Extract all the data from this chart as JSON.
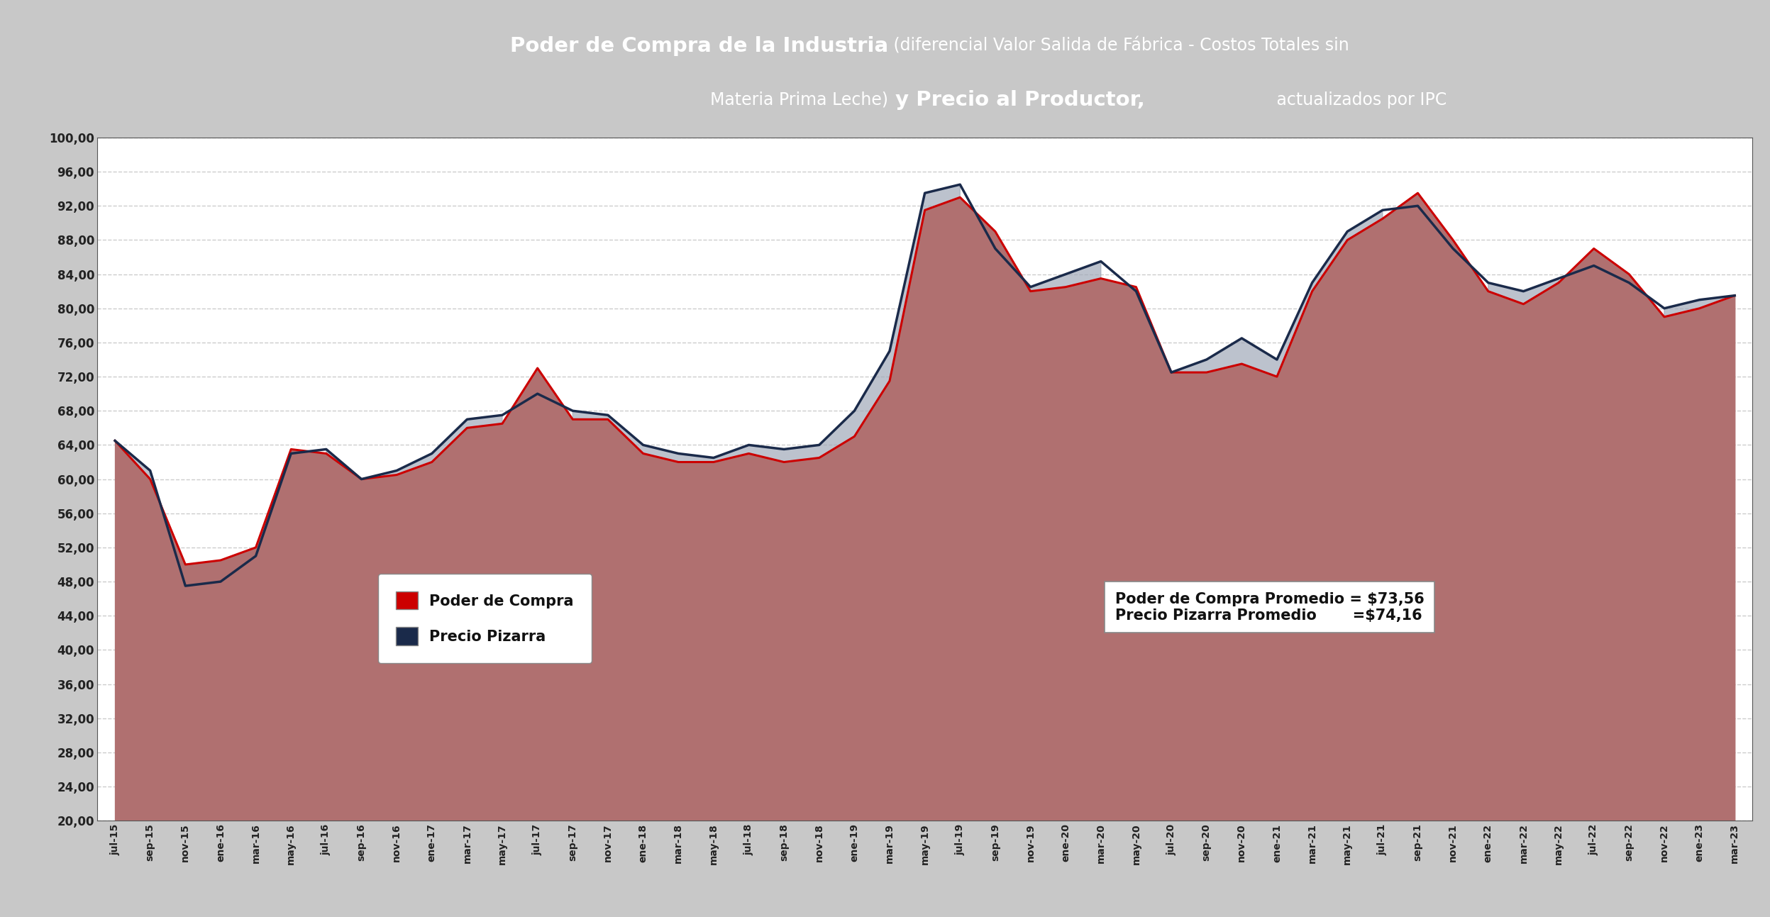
{
  "title_bg": "#0d1f3c",
  "title_fg": "#ffffff",
  "ylim_min": 20,
  "ylim_max": 100,
  "ytick_step": 4,
  "legend_poder": "Poder de Compra",
  "legend_pizarra": "Precio Pizarra",
  "line_poder_color": "#cc0000",
  "line_pizarra_color": "#1a2a4a",
  "fill_poder_color": "#b07070",
  "fill_pizarra_color": "#a0a8b8",
  "bg_color": "#c8c8c8",
  "plot_bg": "#ffffff",
  "grid_color": "#cccccc",
  "labels": [
    "jul-15",
    "sep-15",
    "nov-15",
    "ene-16",
    "mar-16",
    "may-16",
    "jul-16",
    "sep-16",
    "nov-16",
    "ene-17",
    "mar-17",
    "may-17",
    "jul-17",
    "sep-17",
    "nov-17",
    "ene-18",
    "mar-18",
    "may-18",
    "jul-18",
    "sep-18",
    "nov-18",
    "ene-19",
    "mar-19",
    "may-19",
    "jul-19",
    "sep-19",
    "nov-19",
    "ene-20",
    "mar-20",
    "may-20",
    "jul-20",
    "sep-20",
    "nov-20",
    "ene-21",
    "mar-21",
    "may-21",
    "jul-21",
    "sep-21",
    "nov-21",
    "ene-22",
    "mar-22",
    "may-22",
    "jul-22",
    "sep-22",
    "nov-22",
    "ene-23",
    "mar-23"
  ],
  "poder_values": [
    64.5,
    60.0,
    50.0,
    50.5,
    52.0,
    63.5,
    63.0,
    60.0,
    60.5,
    62.0,
    66.0,
    66.5,
    73.0,
    67.0,
    67.0,
    63.0,
    62.0,
    62.0,
    63.0,
    62.0,
    62.5,
    65.0,
    71.5,
    91.5,
    93.0,
    89.0,
    82.0,
    82.5,
    83.5,
    82.5,
    72.5,
    72.5,
    73.5,
    72.0,
    82.0,
    88.0,
    90.5,
    93.5,
    88.0,
    82.0,
    80.5,
    83.0,
    87.0,
    84.0,
    79.0,
    80.0,
    81.5
  ],
  "pizarra_values": [
    64.5,
    61.0,
    47.5,
    48.0,
    51.0,
    63.0,
    63.5,
    60.0,
    61.0,
    63.0,
    67.0,
    67.5,
    70.0,
    68.0,
    67.5,
    64.0,
    63.0,
    62.5,
    64.0,
    63.5,
    64.0,
    68.0,
    75.0,
    93.5,
    94.5,
    87.0,
    82.5,
    84.0,
    85.5,
    82.0,
    72.5,
    74.0,
    76.5,
    74.0,
    83.0,
    89.0,
    91.5,
    92.0,
    87.0,
    83.0,
    82.0,
    83.5,
    85.0,
    83.0,
    80.0,
    81.0,
    81.5
  ]
}
